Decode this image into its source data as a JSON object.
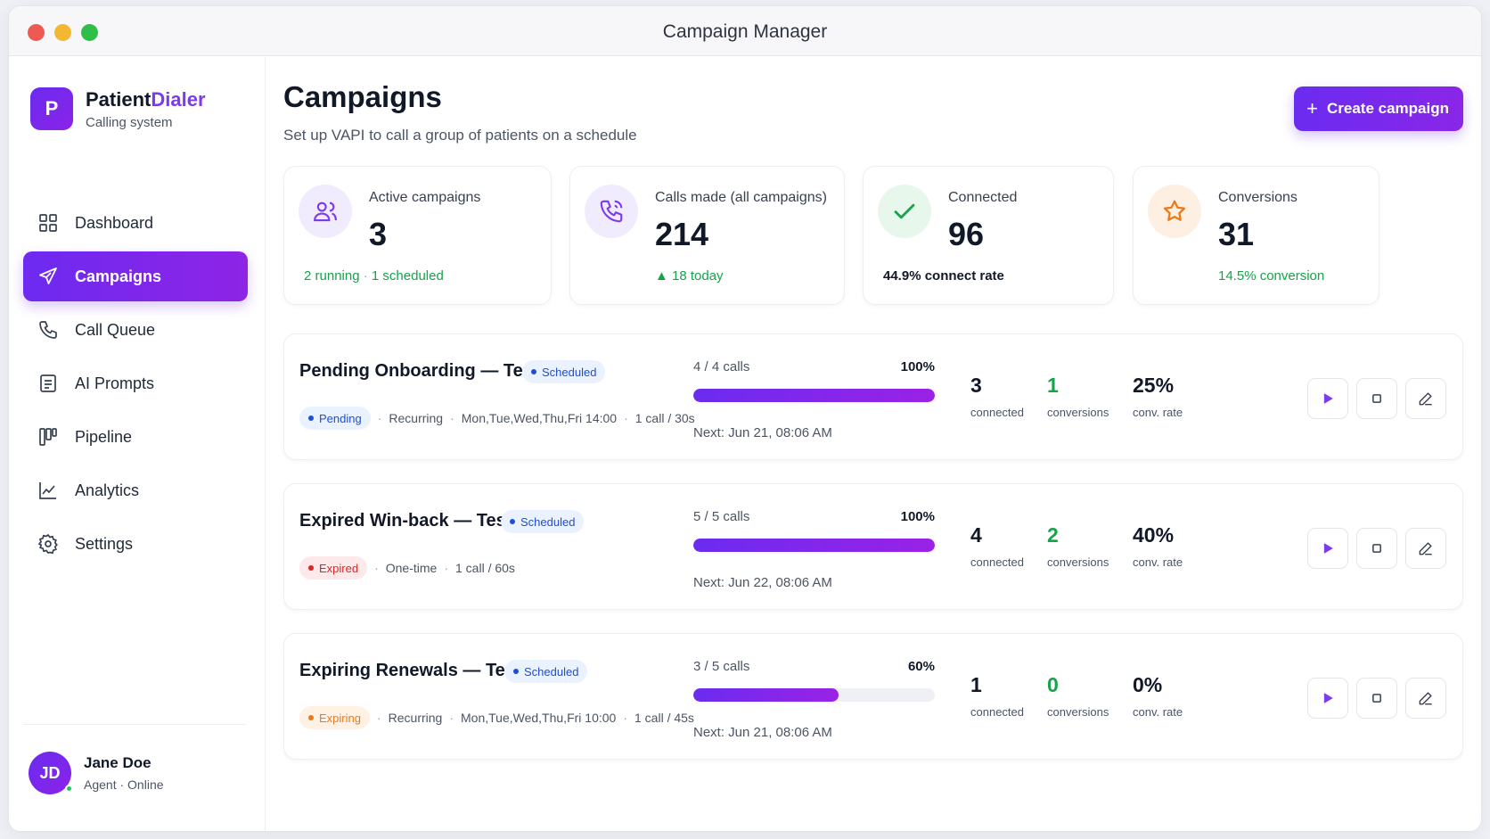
{
  "window": {
    "title": "Campaign Manager"
  },
  "brand": {
    "initial": "P",
    "name_primary": "Patient",
    "name_accent": "Dialer",
    "subtitle": "Calling system"
  },
  "nav": [
    {
      "label": "Dashboard",
      "icon": "grid-icon"
    },
    {
      "label": "Campaigns",
      "icon": "send-icon",
      "active": true
    },
    {
      "label": "Call Queue",
      "icon": "phone-icon"
    },
    {
      "label": "AI Prompts",
      "icon": "document-icon"
    },
    {
      "label": "Pipeline",
      "icon": "columns-icon"
    },
    {
      "label": "Analytics",
      "icon": "chart-icon"
    },
    {
      "label": "Settings",
      "icon": "gear-icon"
    }
  ],
  "user": {
    "initials": "JD",
    "name": "Jane Doe",
    "role": "Agent",
    "status": "Online"
  },
  "page": {
    "title": "Campaigns",
    "subtitle": "Set up VAPI to call a group of patients on a schedule",
    "create_label": "Create campaign"
  },
  "stats": [
    {
      "label": "Active campaigns",
      "value": "3",
      "foot_a": "2 running",
      "foot_b": "1 scheduled",
      "icon": "users-icon"
    },
    {
      "label": "Calls made (all campaigns)",
      "value": "214",
      "foot": "▲ 18 today",
      "icon": "phone-call-icon"
    },
    {
      "label": "Connected",
      "value": "96",
      "foot": "44.9% connect rate",
      "icon": "check-icon"
    },
    {
      "label": "Conversions",
      "value": "31",
      "foot": "14.5% conversion",
      "icon": "star-icon"
    }
  ],
  "colors": {
    "accent": "#7c3aed",
    "green": "#16a34a",
    "blue": "#1d4ed8",
    "red": "#dc2626",
    "orange": "#ea7a17"
  },
  "campaigns": [
    {
      "name": "Pending Onboarding — Test",
      "badge": "Scheduled",
      "status": "Pending",
      "type": "Recurring",
      "schedule": "Mon,Tue,Wed,Thu,Fri 14:00",
      "cadence": "1 call / 30s",
      "calls": "4 / 4 calls",
      "pct": "100%",
      "progress": 1.0,
      "next": "Next: Jun 21, 08:06 AM",
      "connected": "3",
      "connected_label": "connected",
      "conversions": "1",
      "conversions_label": "conversions",
      "rate": "25%",
      "rate_label": "conv. rate"
    },
    {
      "name": "Expired Win-back — Test",
      "badge": "Scheduled",
      "status": "Expired",
      "type": "One-time",
      "cadence": "1 call / 60s",
      "calls": "5 / 5 calls",
      "pct": "100%",
      "progress": 1.0,
      "next": "Next: Jun 22, 08:06 AM",
      "connected": "4",
      "connected_label": "connected",
      "conversions": "2",
      "conversions_label": "conversions",
      "rate": "40%",
      "rate_label": "conv. rate"
    },
    {
      "name": "Expiring Renewals — Test",
      "badge": "Scheduled",
      "status": "Expiring",
      "type": "Recurring",
      "schedule": "Mon,Tue,Wed,Thu,Fri 10:00",
      "cadence": "1 call / 45s",
      "calls": "3 / 5 calls",
      "pct": "60%",
      "progress": 0.6,
      "next": "Next: Jun 21, 08:06 AM",
      "connected": "1",
      "connected_label": "connected",
      "conversions": "0",
      "conversions_label": "conversions",
      "rate": "0%",
      "rate_label": "conv. rate"
    }
  ]
}
